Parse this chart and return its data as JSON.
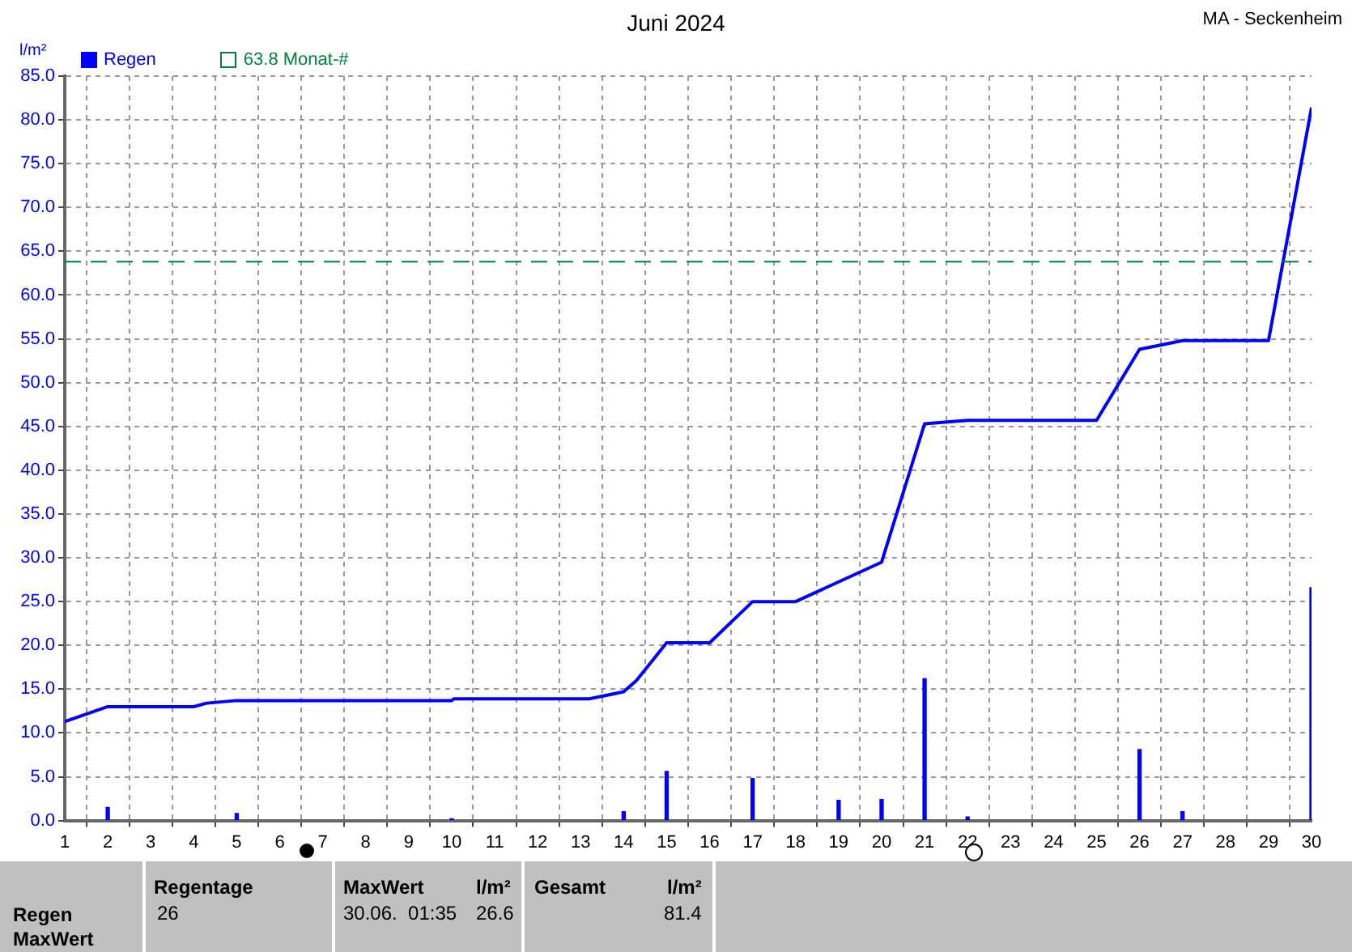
{
  "chart_data": {
    "type": "bar",
    "title": "Juni 2024",
    "subtitle": "MA - Seckenheim",
    "ylabel": "l/m²",
    "xlim": [
      1,
      30
    ],
    "xticks": [
      1,
      2,
      3,
      4,
      5,
      6,
      7,
      8,
      9,
      10,
      11,
      12,
      13,
      14,
      15,
      16,
      17,
      18,
      19,
      20,
      21,
      22,
      23,
      24,
      25,
      26,
      27,
      28,
      29,
      30
    ],
    "ylim": [
      0,
      85
    ],
    "yticks": [
      {
        "value": 0,
        "label": "0.0"
      },
      {
        "value": 5,
        "label": "5.0"
      },
      {
        "value": 10,
        "label": "10.0"
      },
      {
        "value": 15,
        "label": "15.0"
      },
      {
        "value": 20,
        "label": "20.0"
      },
      {
        "value": 25,
        "label": "25.0"
      },
      {
        "value": 30,
        "label": "30.0"
      },
      {
        "value": 35,
        "label": "35.0"
      },
      {
        "value": 40,
        "label": "40.0"
      },
      {
        "value": 45,
        "label": "45.0"
      },
      {
        "value": 50,
        "label": "50.0"
      },
      {
        "value": 55,
        "label": "55.0"
      },
      {
        "value": 60,
        "label": "60.0"
      },
      {
        "value": 65,
        "label": "65.0"
      },
      {
        "value": 70,
        "label": "70.0"
      },
      {
        "value": 75,
        "label": "75.0"
      },
      {
        "value": 80,
        "label": "80.0"
      },
      {
        "value": 85,
        "label": "85.0"
      }
    ],
    "series": [
      {
        "name": "Regen",
        "color": "#0000ff",
        "x": [
          2,
          5,
          10,
          14,
          15,
          17,
          19,
          20,
          21,
          22,
          26,
          27,
          30
        ],
        "values": [
          1.5,
          0.8,
          0.2,
          1.0,
          5.6,
          4.8,
          2.3,
          2.4,
          16.2,
          0.4,
          8.1,
          1.0,
          26.6
        ]
      },
      {
        "type": "line",
        "color": "#0000ff",
        "x": [
          1,
          2,
          4,
          4.3,
          5,
          10,
          10.05,
          13.2,
          14,
          14.3,
          15,
          16,
          17,
          18,
          20,
          21,
          22,
          25,
          26,
          27,
          29,
          30
        ],
        "values": [
          11.3,
          13,
          13,
          13.4,
          13.7,
          13.7,
          13.9,
          13.9,
          14.7,
          16,
          20.3,
          20.3,
          25,
          25,
          29.5,
          45.3,
          45.7,
          45.7,
          53.8,
          54.8,
          54.8,
          81.4
        ]
      }
    ],
    "ref_lines": [
      {
        "axis": "y",
        "value": 63.8,
        "label": "63.8 Monat-#",
        "color": "#008040",
        "line_style": "dashed"
      }
    ],
    "grid": true,
    "legend": "top left",
    "marker": "none",
    "line_style": "solid",
    "annotations": [
      "Regen",
      "MaxWert",
      "Regentage",
      "26",
      "MaxWert",
      "l/m²",
      "30.06.  01:35",
      "26.6",
      "Gesamt",
      "l/m²",
      "81.4"
    ]
  }
}
